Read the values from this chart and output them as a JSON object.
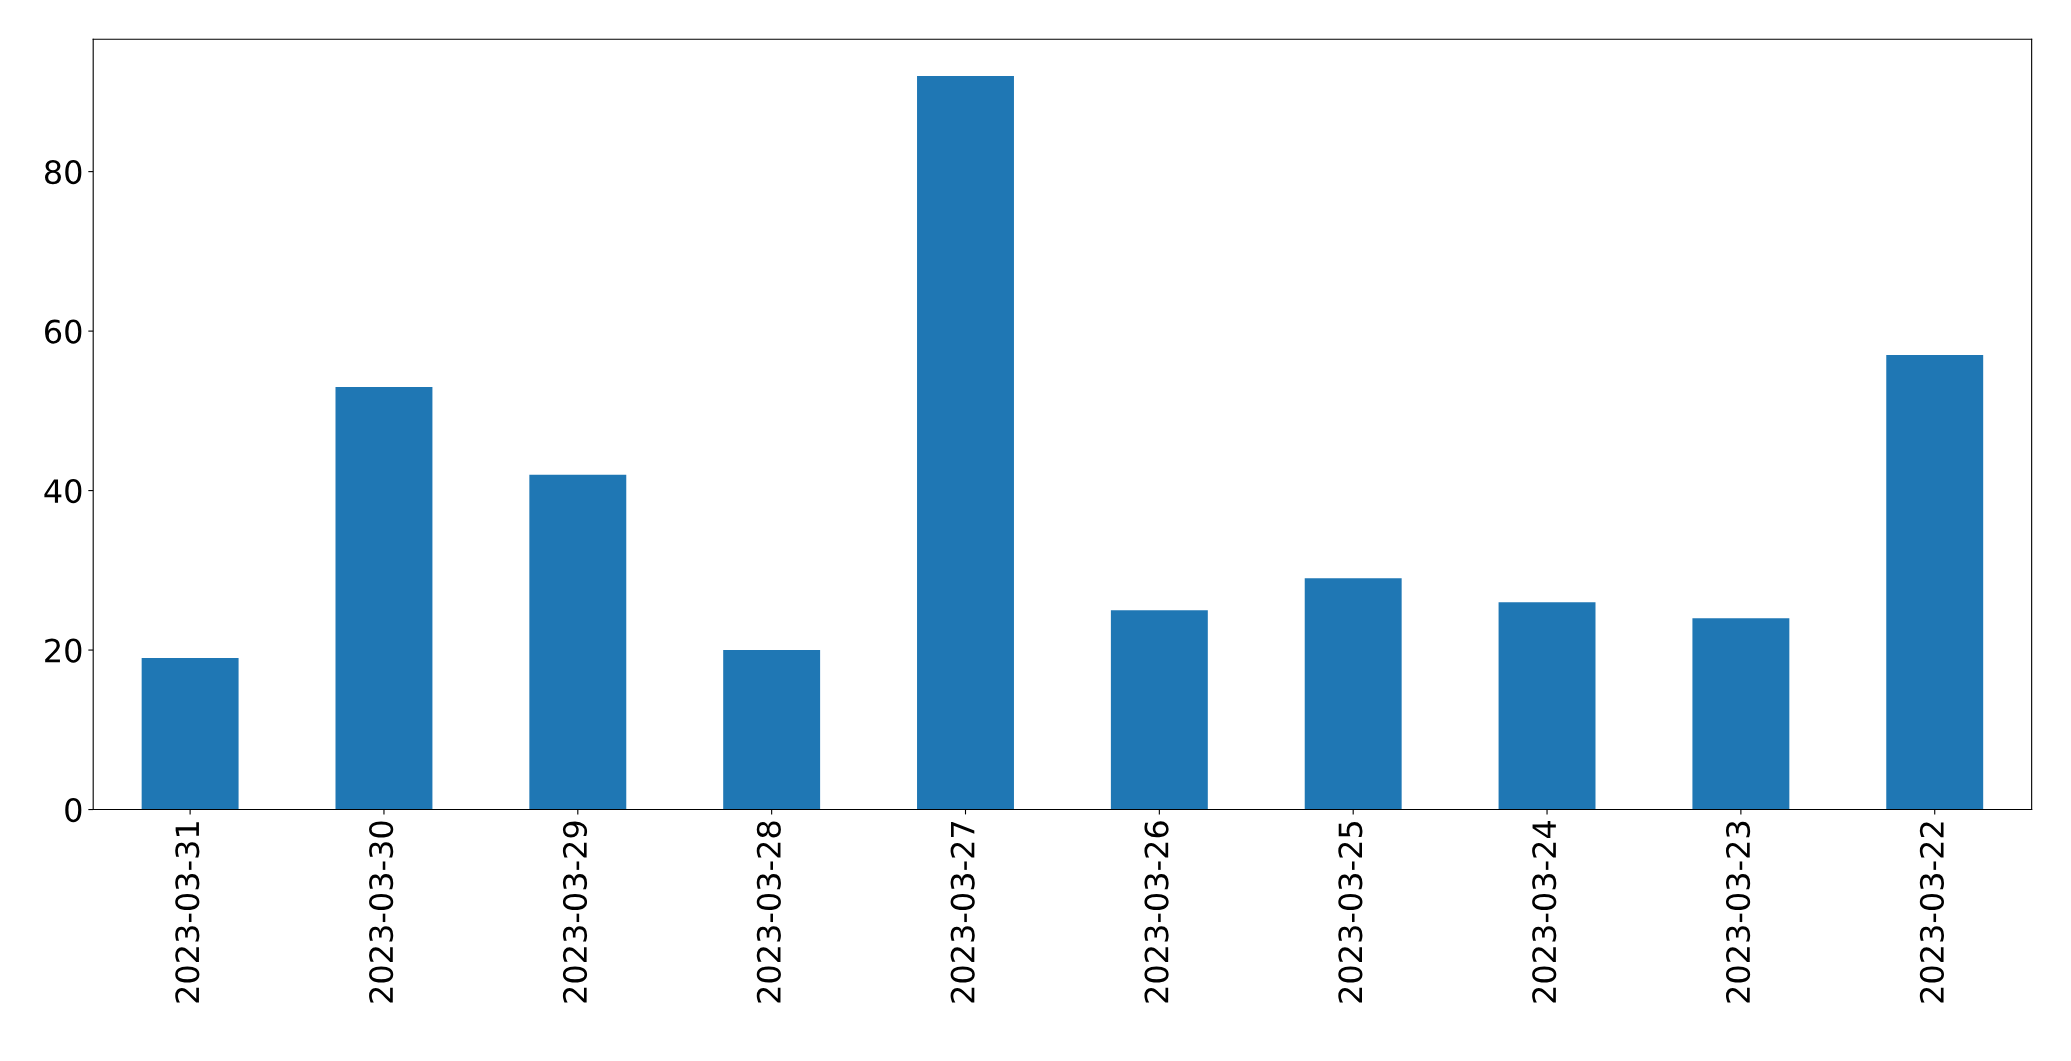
{
  "chart_data": {
    "type": "bar",
    "categories": [
      "2023-03-31",
      "2023-03-30",
      "2023-03-29",
      "2023-03-28",
      "2023-03-27",
      "2023-03-26",
      "2023-03-25",
      "2023-03-24",
      "2023-03-23",
      "2023-03-22"
    ],
    "values": [
      19,
      53,
      42,
      20,
      92,
      25,
      29,
      26,
      24,
      57
    ],
    "color": "#1f77b4",
    "ylim": [
      0,
      96.6
    ],
    "yticks": [
      0,
      20,
      40,
      60,
      80
    ],
    "grid": false,
    "legend": false
  }
}
